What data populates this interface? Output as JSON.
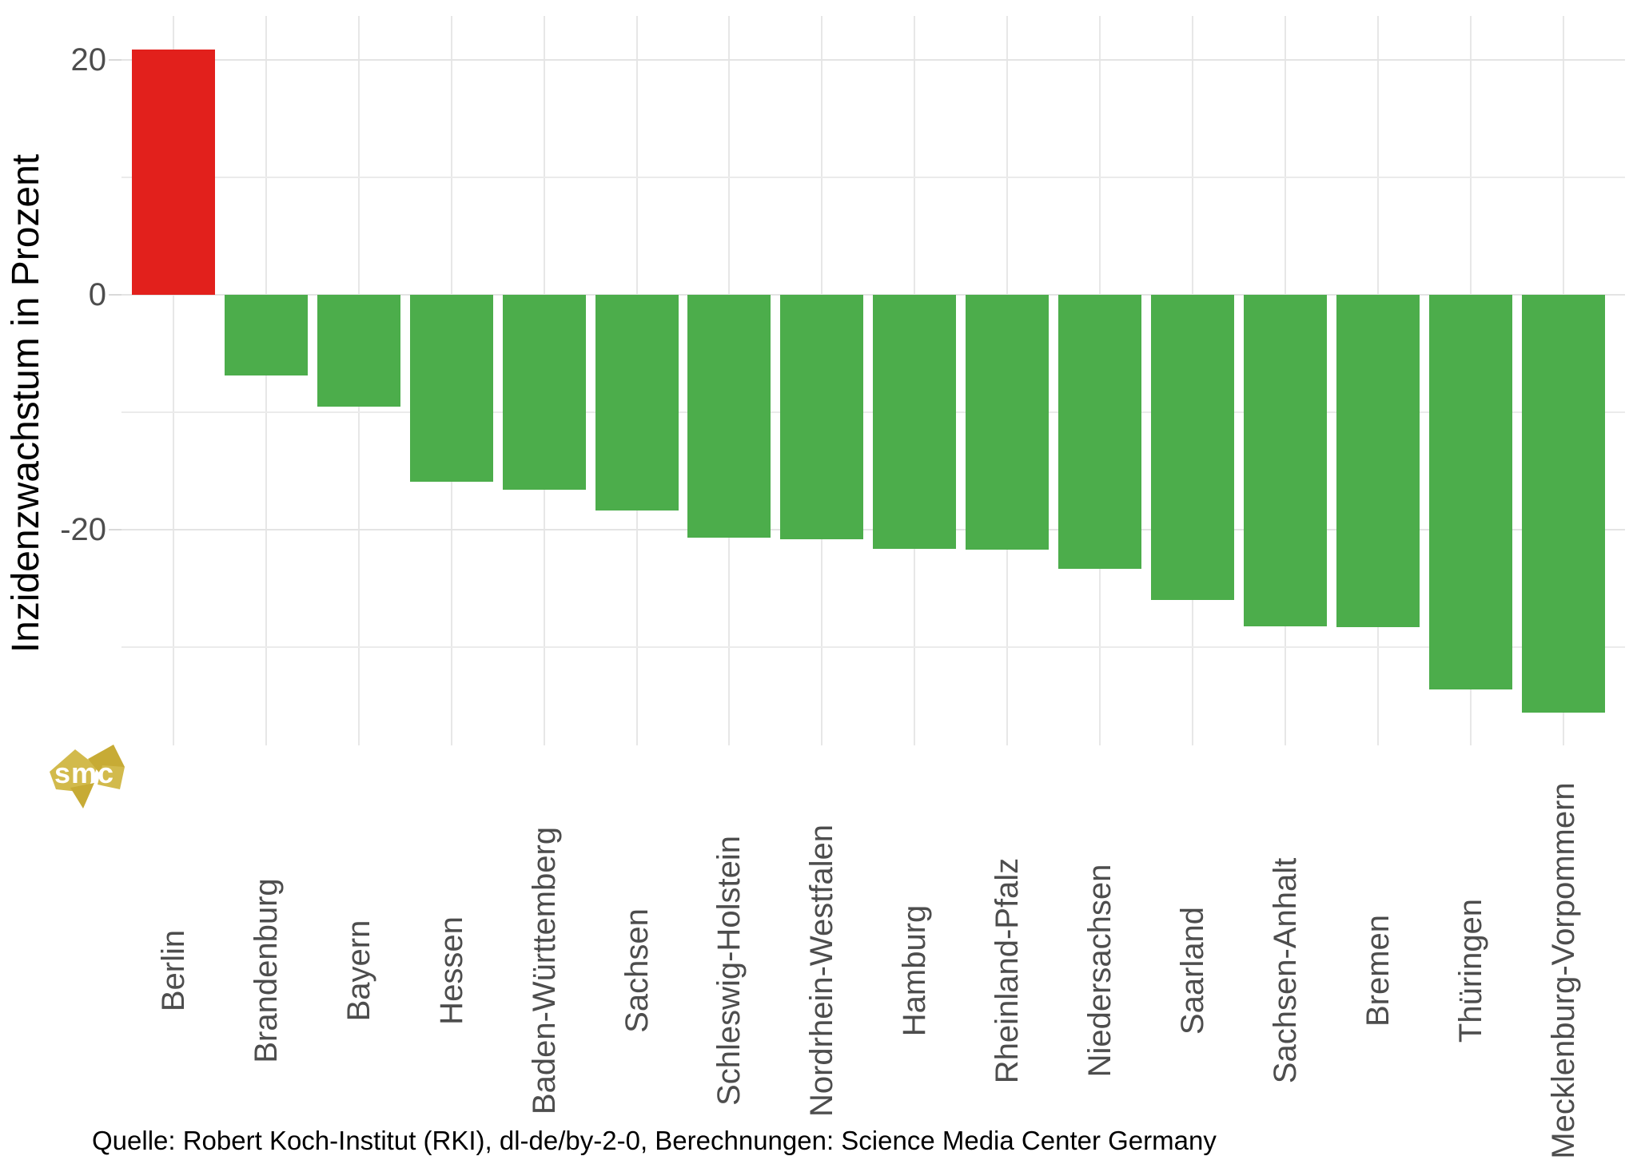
{
  "chart_data": {
    "type": "bar",
    "title": "",
    "xlabel": "",
    "ylabel": "Inzidenzwachstum in Prozent",
    "categories": [
      "Berlin",
      "Brandenburg",
      "Bayern",
      "Hessen",
      "Baden-Württemberg",
      "Sachsen",
      "Schleswig-Holstein",
      "Nordrhein-Westfalen",
      "Hamburg",
      "Rheinland-Pfalz",
      "Niedersachsen",
      "Saarland",
      "Sachsen-Anhalt",
      "Bremen",
      "Thüringen",
      "Mecklenburg-Vorpommern"
    ],
    "values": [
      20.9,
      -6.9,
      -9.5,
      -15.9,
      -16.6,
      -18.4,
      -20.7,
      -20.8,
      -21.6,
      -21.7,
      -23.3,
      -26.0,
      -28.2,
      -28.3,
      -33.6,
      -35.6
    ],
    "y_major_ticks": [
      20,
      0,
      -20
    ],
    "y_minor_gridlines": [
      10,
      -10,
      -30
    ],
    "ylim": [
      -38.6,
      23.8
    ],
    "grid": "on",
    "legend_position": "none",
    "colors": {
      "positive_bar": "#e2201c",
      "negative_bar": "#4cad4b",
      "major_grid": "#e4e4e4",
      "minor_grid": "#ebebeb",
      "axis_text": "#4d4d4d"
    }
  },
  "caption": "Quelle: Robert Koch-Institut (RKI), dl-de/by-2-0, Berechnungen: Science Media Center Germany",
  "logo": {
    "text": "smc",
    "gold": "#d2ba4c",
    "gold_dark": "#c7ab35"
  }
}
